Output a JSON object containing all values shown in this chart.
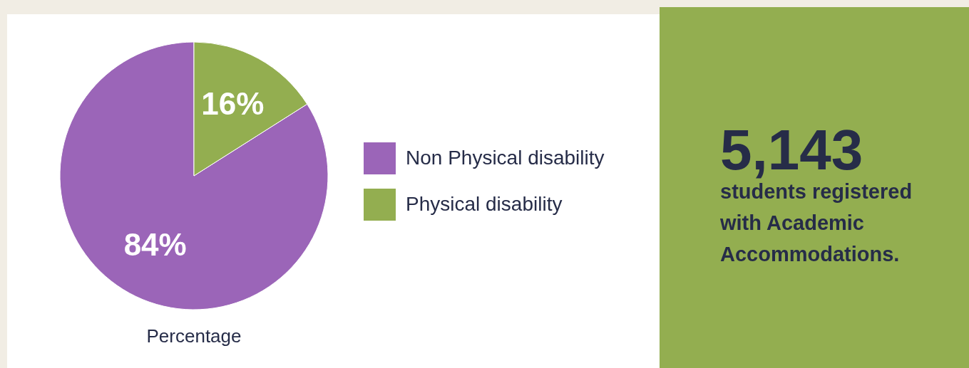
{
  "chart_data": [
    {
      "type": "pie",
      "xlabel": "Percentage",
      "categories": [
        "Non Physical disability",
        "Physical disability"
      ],
      "values": [
        84,
        16
      ],
      "colors": [
        "#9b65b8",
        "#93ae50"
      ],
      "value_labels": [
        "84%",
        "16%"
      ],
      "legend": "right"
    },
    {
      "type": "other",
      "title": "5,143",
      "subtitle": "students registered with Academic Accommodations."
    }
  ]
}
